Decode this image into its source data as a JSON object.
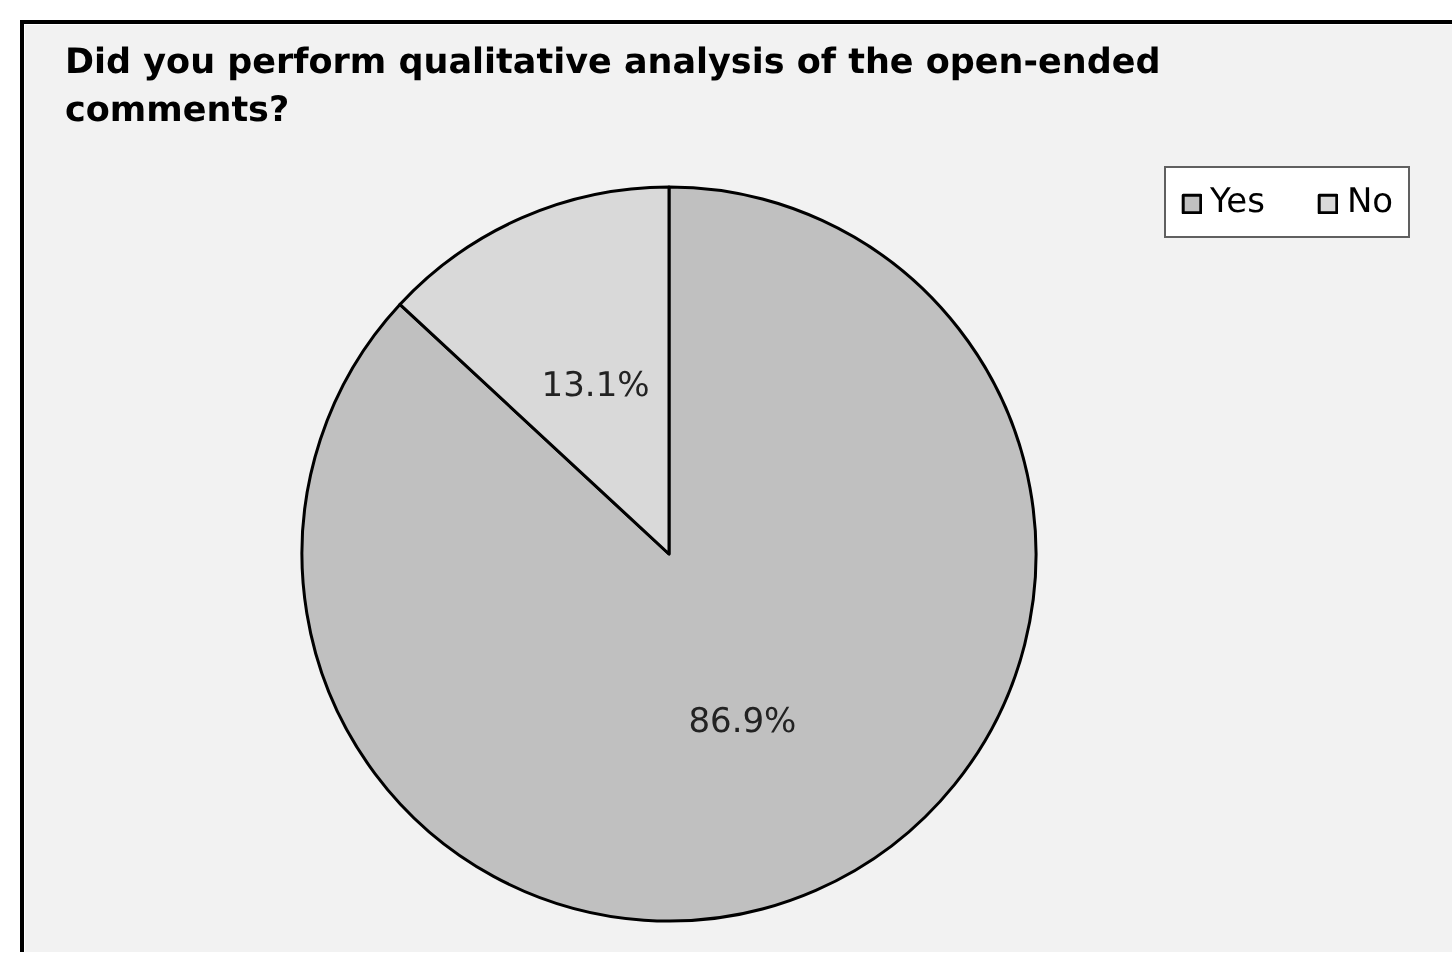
{
  "chart_data": {
    "type": "pie",
    "title": "Did you perform qualitative analysis of the open-ended comments?",
    "categories": [
      "Yes",
      "No"
    ],
    "values": [
      86.9,
      13.1
    ],
    "colors": [
      "#c0c0c0",
      "#d9d9d9"
    ],
    "value_labels": [
      "86.9%",
      "13.1%"
    ],
    "legend": "top right"
  }
}
